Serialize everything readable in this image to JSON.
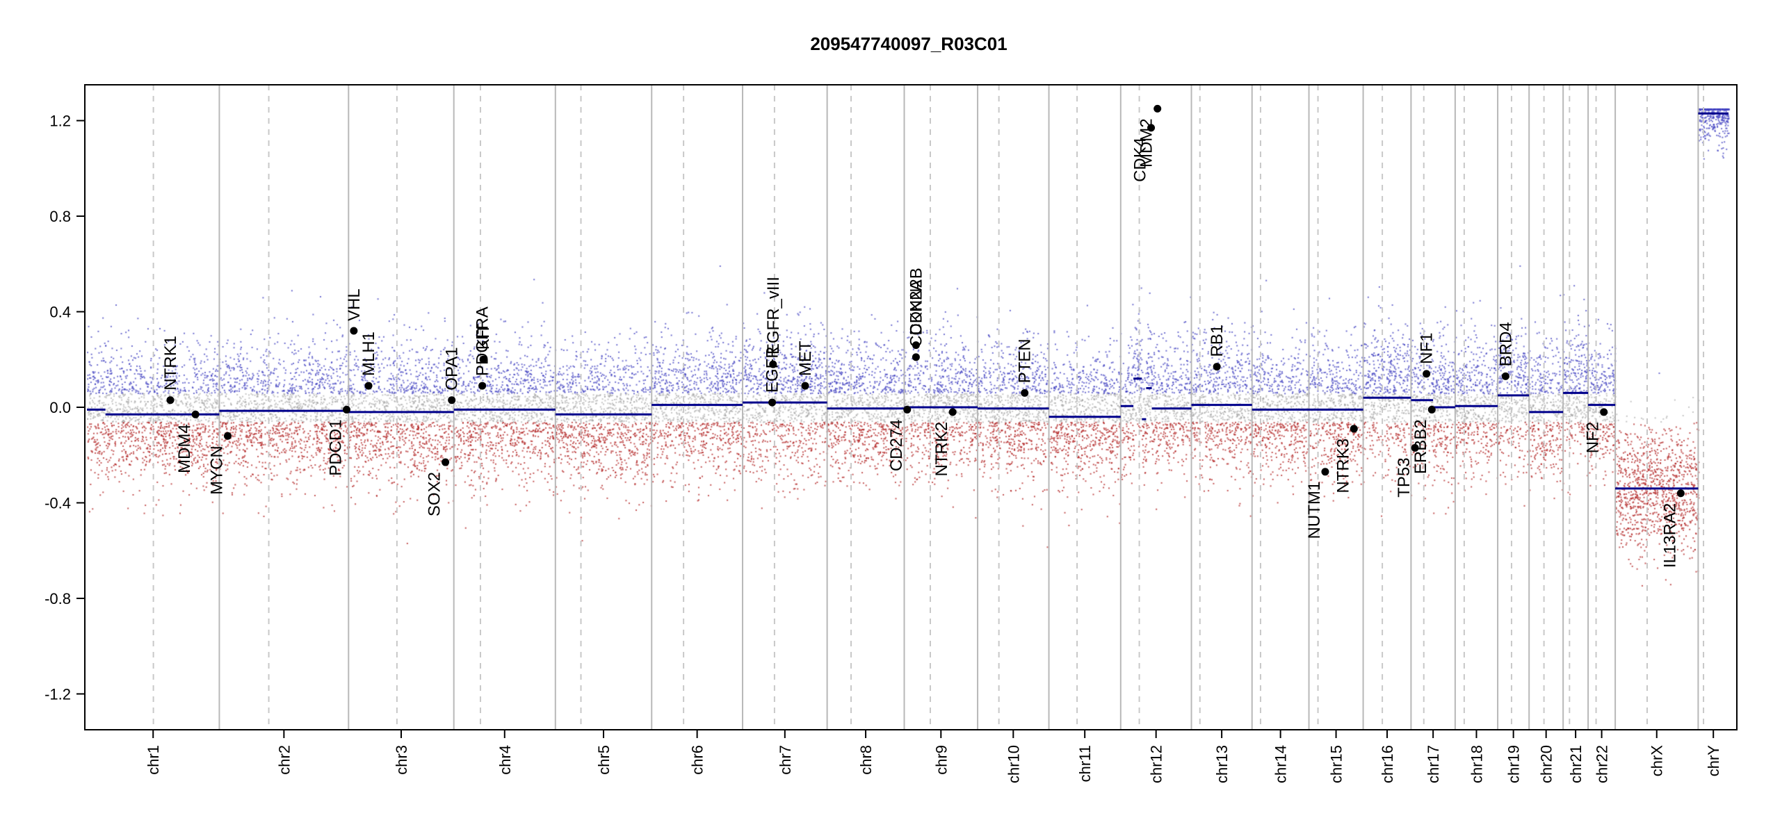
{
  "chart_data": {
    "type": "scatter",
    "title": "209547740097_R03C01",
    "xlabel": "",
    "ylabel": "",
    "ylim": [
      -1.35,
      1.35
    ],
    "yticks": [
      -1.2,
      -0.8,
      -0.4,
      0.0,
      0.4,
      0.8,
      1.2
    ],
    "ytick_labels": [
      "-1.2",
      "-0.8",
      "-0.4",
      "0.0",
      "0.4",
      "0.8",
      "1.2"
    ],
    "grid": false,
    "legend": "none",
    "colors": {
      "segment": "#00008b",
      "gain_points": "#4040c0",
      "loss_points": "#b02020",
      "neutral_points": "#9a9a9a",
      "chrom_boundary": "#b8b8b8",
      "centromere": "#c8c8c8",
      "gene_marker": "#000000"
    },
    "chromosomes": [
      {
        "name": "chr1",
        "length": 249,
        "centromere": 125,
        "segments": [
          {
            "start": 0,
            "end": 0.14,
            "value": -0.01
          },
          {
            "start": 0.14,
            "end": 1,
            "value": -0.03
          }
        ]
      },
      {
        "name": "chr2",
        "length": 243,
        "centromere": 93,
        "segments": [
          {
            "start": 0,
            "end": 1,
            "value": -0.015
          }
        ]
      },
      {
        "name": "chr3",
        "length": 198,
        "centromere": 91,
        "segments": [
          {
            "start": 0,
            "end": 1,
            "value": -0.02
          }
        ]
      },
      {
        "name": "chr4",
        "length": 191,
        "centromere": 50,
        "segments": [
          {
            "start": 0,
            "end": 1,
            "value": -0.01
          }
        ]
      },
      {
        "name": "chr5",
        "length": 181,
        "centromere": 48,
        "segments": [
          {
            "start": 0,
            "end": 1,
            "value": -0.03
          }
        ]
      },
      {
        "name": "chr6",
        "length": 171,
        "centromere": 60,
        "segments": [
          {
            "start": 0,
            "end": 1,
            "value": 0.01
          }
        ]
      },
      {
        "name": "chr7",
        "length": 159,
        "centromere": 60,
        "segments": [
          {
            "start": 0,
            "end": 1,
            "value": 0.02
          }
        ]
      },
      {
        "name": "chr8",
        "length": 145,
        "centromere": 45,
        "segments": [
          {
            "start": 0,
            "end": 1,
            "value": -0.005
          }
        ]
      },
      {
        "name": "chr9",
        "length": 138,
        "centromere": 49,
        "segments": [
          {
            "start": 0,
            "end": 1,
            "value": 0.0
          }
        ]
      },
      {
        "name": "chr10",
        "length": 134,
        "centromere": 40,
        "segments": [
          {
            "start": 0,
            "end": 1,
            "value": -0.005
          }
        ]
      },
      {
        "name": "chr11",
        "length": 135,
        "centromere": 53,
        "segments": [
          {
            "start": 0,
            "end": 1,
            "value": -0.04
          }
        ]
      },
      {
        "name": "chr12",
        "length": 133,
        "centromere": 35,
        "segments": [
          {
            "start": 0,
            "end": 0.18,
            "value": 0.005
          },
          {
            "start": 0.18,
            "end": 0.3,
            "value": 0.12
          },
          {
            "start": 0.3,
            "end": 0.36,
            "value": -0.05
          },
          {
            "start": 0.36,
            "end": 0.44,
            "value": 0.08
          },
          {
            "start": 0.44,
            "end": 1,
            "value": -0.005
          }
        ]
      },
      {
        "name": "chr13",
        "length": 114,
        "centromere": 16,
        "segments": [
          {
            "start": 0,
            "end": 1,
            "value": 0.01
          }
        ]
      },
      {
        "name": "chr14",
        "length": 107,
        "centromere": 16,
        "segments": [
          {
            "start": 0,
            "end": 1,
            "value": -0.01
          }
        ]
      },
      {
        "name": "chr15",
        "length": 102,
        "centromere": 17,
        "segments": [
          {
            "start": 0,
            "end": 1,
            "value": -0.01
          }
        ]
      },
      {
        "name": "chr16",
        "length": 90,
        "centromere": 36,
        "segments": [
          {
            "start": 0,
            "end": 1,
            "value": 0.04
          }
        ]
      },
      {
        "name": "chr17",
        "length": 83,
        "centromere": 24,
        "segments": [
          {
            "start": 0,
            "end": 0.5,
            "value": 0.03
          },
          {
            "start": 0.5,
            "end": 1,
            "value": 0.0
          }
        ]
      },
      {
        "name": "chr18",
        "length": 80,
        "centromere": 17,
        "segments": [
          {
            "start": 0,
            "end": 1,
            "value": 0.005
          }
        ]
      },
      {
        "name": "chr19",
        "length": 59,
        "centromere": 26,
        "segments": [
          {
            "start": 0,
            "end": 1,
            "value": 0.05
          }
        ]
      },
      {
        "name": "chr20",
        "length": 64,
        "centromere": 28,
        "segments": [
          {
            "start": 0,
            "end": 1,
            "value": -0.02
          }
        ]
      },
      {
        "name": "chr21",
        "length": 47,
        "centromere": 12,
        "segments": [
          {
            "start": 0,
            "end": 1,
            "value": 0.06
          }
        ]
      },
      {
        "name": "chr22",
        "length": 51,
        "centromere": 15,
        "segments": [
          {
            "start": 0,
            "end": 1,
            "value": 0.01
          }
        ]
      },
      {
        "name": "chrX",
        "length": 156,
        "centromere": 60,
        "segments": [
          {
            "start": 0,
            "end": 1,
            "value": -0.34
          }
        ]
      },
      {
        "name": "chrY",
        "length": 57,
        "centromere": 10,
        "segments": [
          {
            "start": 0,
            "end": 1,
            "value": 1.23
          }
        ]
      }
    ],
    "genes": [
      {
        "name": "NTRK1",
        "chrom": "chr1",
        "pos": 0.63,
        "value": 0.03,
        "label_side": "above"
      },
      {
        "name": "MDM4",
        "chrom": "chr1",
        "pos": 0.82,
        "value": -0.03,
        "label_side": "below"
      },
      {
        "name": "MYCN",
        "chrom": "chr2",
        "pos": 0.065,
        "value": -0.12,
        "label_side": "below"
      },
      {
        "name": "VHL",
        "chrom": "chr3",
        "pos": 0.05,
        "value": 0.32,
        "label_side": "above"
      },
      {
        "name": "PDCD1",
        "chrom": "chr2",
        "pos": 0.985,
        "value": -0.01,
        "label_side": "below"
      },
      {
        "name": "MLH1",
        "chrom": "chr3",
        "pos": 0.19,
        "value": 0.09,
        "label_side": "above"
      },
      {
        "name": "SOX2",
        "chrom": "chr3",
        "pos": 0.92,
        "value": -0.23,
        "label_side": "below"
      },
      {
        "name": "OPA1",
        "chrom": "chr3",
        "pos": 0.98,
        "value": 0.03,
        "label_side": "above"
      },
      {
        "name": "PDGFRA",
        "chrom": "chr4",
        "pos": 0.28,
        "value": 0.09,
        "label_side": "above"
      },
      {
        "name": "KIT",
        "chrom": "chr4",
        "pos": 0.29,
        "value": 0.2,
        "label_side": "above"
      },
      {
        "name": "EGFR",
        "chrom": "chr7",
        "pos": 0.35,
        "value": 0.02,
        "label_side": "above"
      },
      {
        "name": "EGFR_vIII",
        "chrom": "chr7",
        "pos": 0.36,
        "value": 0.18,
        "label_side": "above"
      },
      {
        "name": "MET",
        "chrom": "chr7",
        "pos": 0.74,
        "value": 0.09,
        "label_side": "above"
      },
      {
        "name": "CD274",
        "chrom": "chr9",
        "pos": 0.04,
        "value": -0.01,
        "label_side": "below"
      },
      {
        "name": "CDKN2A",
        "chrom": "chr9",
        "pos": 0.16,
        "value": 0.21,
        "label_side": "above"
      },
      {
        "name": "CDKN2B",
        "chrom": "chr9",
        "pos": 0.16,
        "value": 0.26,
        "label_side": "above"
      },
      {
        "name": "NTRK2",
        "chrom": "chr9",
        "pos": 0.66,
        "value": -0.02,
        "label_side": "below"
      },
      {
        "name": "PTEN",
        "chrom": "chr10",
        "pos": 0.66,
        "value": 0.06,
        "label_side": "above"
      },
      {
        "name": "CDK4",
        "chrom": "chr12",
        "pos": 0.43,
        "value": 1.17,
        "label_side": "below"
      },
      {
        "name": "MDM2",
        "chrom": "chr12",
        "pos": 0.52,
        "value": 1.25,
        "label_side": "below"
      },
      {
        "name": "RB1",
        "chrom": "chr13",
        "pos": 0.42,
        "value": 0.17,
        "label_side": "above"
      },
      {
        "name": "NUTM1",
        "chrom": "chr15",
        "pos": 0.3,
        "value": -0.27,
        "label_side": "below"
      },
      {
        "name": "NTRK3",
        "chrom": "chr15",
        "pos": 0.83,
        "value": -0.09,
        "label_side": "below"
      },
      {
        "name": "NF1",
        "chrom": "chr17",
        "pos": 0.35,
        "value": 0.14,
        "label_side": "above"
      },
      {
        "name": "TP53",
        "chrom": "chr17",
        "pos": 0.09,
        "value": -0.17,
        "label_side": "below"
      },
      {
        "name": "ERBB2",
        "chrom": "chr17",
        "pos": 0.47,
        "value": -0.01,
        "label_side": "below"
      },
      {
        "name": "BRD4",
        "chrom": "chr19",
        "pos": 0.25,
        "value": 0.13,
        "label_side": "above"
      },
      {
        "name": "NF2",
        "chrom": "chr22",
        "pos": 0.58,
        "value": -0.02,
        "label_side": "below"
      },
      {
        "name": "IL13RA2",
        "chrom": "chrX",
        "pos": 0.79,
        "value": -0.36,
        "label_side": "below"
      }
    ]
  }
}
